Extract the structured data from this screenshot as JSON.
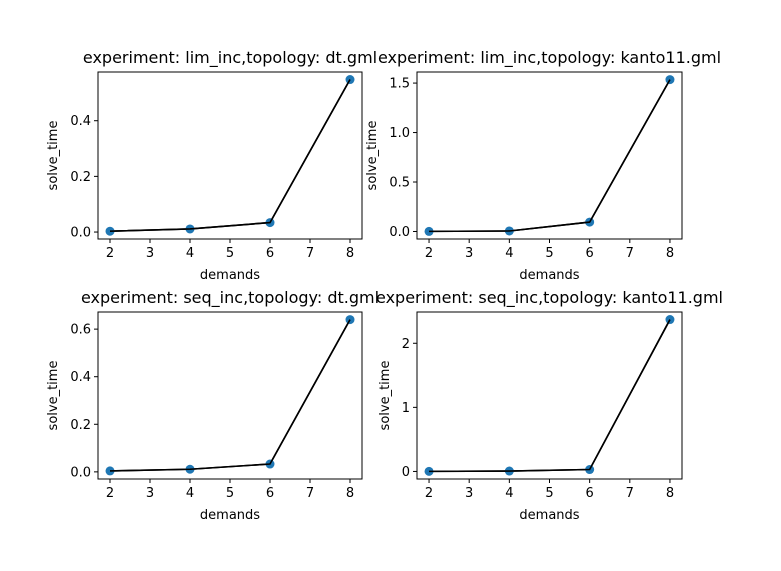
{
  "chart_data": [
    {
      "type": "line",
      "title": "experiment: lim_inc,topology: dt.gml",
      "xlabel": "demands",
      "ylabel": "solve_time",
      "x": [
        2,
        4,
        6,
        8
      ],
      "y": [
        0.003,
        0.011,
        0.034,
        0.548
      ],
      "xlim": [
        1.7,
        8.3
      ],
      "ylim": [
        -0.025,
        0.575
      ],
      "xticks": [
        2,
        3,
        4,
        5,
        6,
        7,
        8
      ],
      "xtick_labels": [
        "2",
        "3",
        "4",
        "5",
        "6",
        "7",
        "8"
      ],
      "yticks": [
        0.0,
        0.2,
        0.4
      ],
      "ytick_labels": [
        "0.0",
        "0.2",
        "0.4"
      ],
      "grid": false,
      "line_color": "#000000",
      "marker_color": "#1f77b4"
    },
    {
      "type": "line",
      "title": "experiment: lim_inc,topology: kanto11.gml",
      "xlabel": "demands",
      "ylabel": "solve_time",
      "x": [
        2,
        4,
        6,
        8
      ],
      "y": [
        0.001,
        0.005,
        0.095,
        1.535
      ],
      "xlim": [
        1.7,
        8.3
      ],
      "ylim": [
        -0.076,
        1.612
      ],
      "xticks": [
        2,
        3,
        4,
        5,
        6,
        7,
        8
      ],
      "xtick_labels": [
        "2",
        "3",
        "4",
        "5",
        "6",
        "7",
        "8"
      ],
      "yticks": [
        0.0,
        0.5,
        1.0,
        1.5
      ],
      "ytick_labels": [
        "0.0",
        "0.5",
        "1.0",
        "1.5"
      ],
      "grid": false,
      "line_color": "#000000",
      "marker_color": "#1f77b4"
    },
    {
      "type": "line",
      "title": "experiment: seq_inc,topology: dt.gml",
      "xlabel": "demands",
      "ylabel": "solve_time",
      "x": [
        2,
        4,
        6,
        8
      ],
      "y": [
        0.004,
        0.011,
        0.033,
        0.64
      ],
      "xlim": [
        1.7,
        8.3
      ],
      "ylim": [
        -0.03,
        0.672
      ],
      "xticks": [
        2,
        3,
        4,
        5,
        6,
        7,
        8
      ],
      "xtick_labels": [
        "2",
        "3",
        "4",
        "5",
        "6",
        "7",
        "8"
      ],
      "yticks": [
        0.0,
        0.2,
        0.4,
        0.6
      ],
      "ytick_labels": [
        "0.0",
        "0.2",
        "0.4",
        "0.6"
      ],
      "grid": false,
      "line_color": "#000000",
      "marker_color": "#1f77b4"
    },
    {
      "type": "line",
      "title": "experiment: seq_inc,topology: kanto11.gml",
      "xlabel": "demands",
      "ylabel": "solve_time",
      "x": [
        2,
        4,
        6,
        8
      ],
      "y": [
        0.001,
        0.006,
        0.03,
        2.37
      ],
      "xlim": [
        1.7,
        8.3
      ],
      "ylim": [
        -0.118,
        2.488
      ],
      "xticks": [
        2,
        3,
        4,
        5,
        6,
        7,
        8
      ],
      "xtick_labels": [
        "2",
        "3",
        "4",
        "5",
        "6",
        "7",
        "8"
      ],
      "yticks": [
        0,
        1,
        2
      ],
      "ytick_labels": [
        "0",
        "1",
        "2"
      ],
      "grid": false,
      "line_color": "#000000",
      "marker_color": "#1f77b4"
    }
  ]
}
